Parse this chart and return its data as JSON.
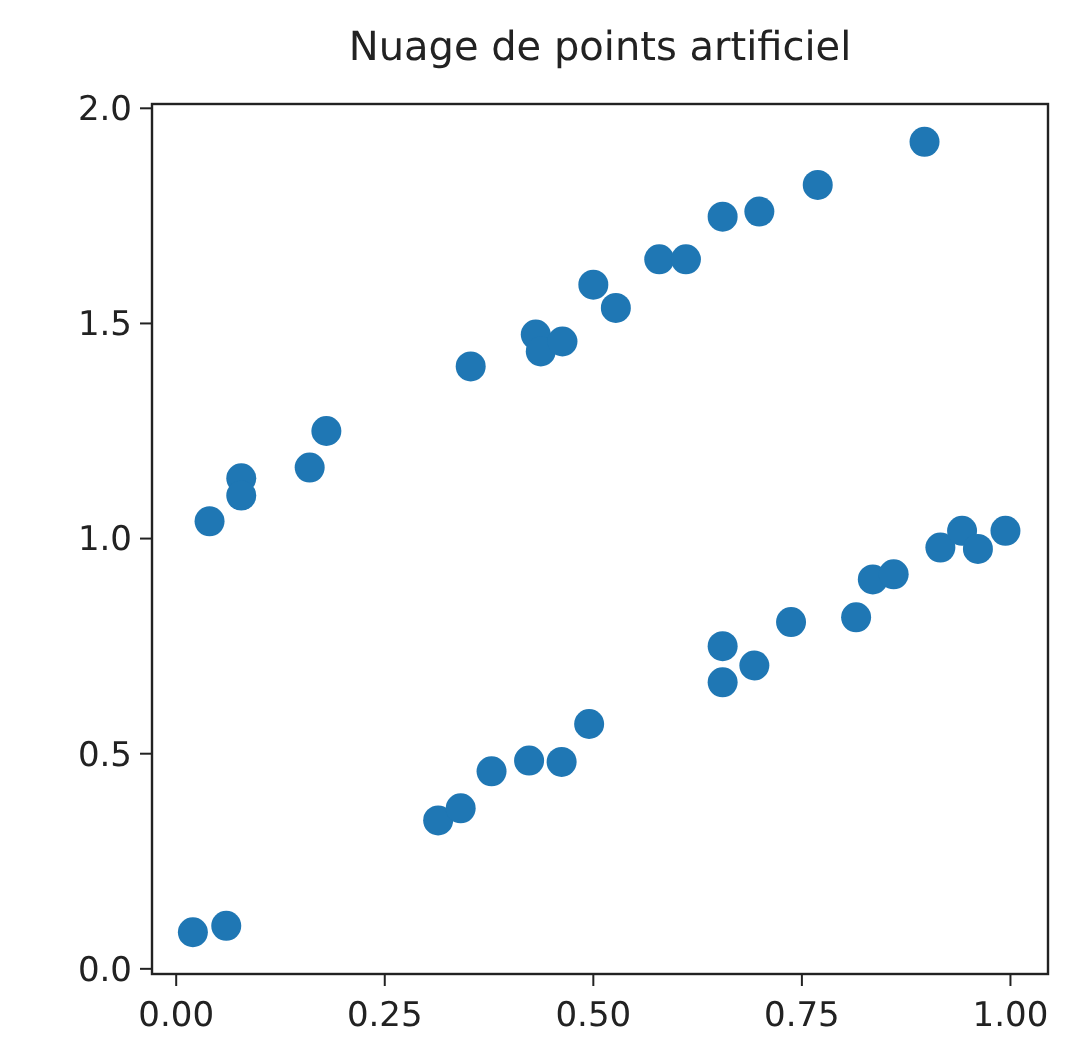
{
  "chart_data": {
    "type": "scatter",
    "title": "Nuage de points artificiel",
    "x": [
      0.04,
      0.078,
      0.078,
      0.16,
      0.18,
      0.353,
      0.431,
      0.437,
      0.463,
      0.5,
      0.527,
      0.579,
      0.611,
      0.655,
      0.699,
      0.769,
      0.897,
      0.02,
      0.06,
      0.314,
      0.341,
      0.378,
      0.423,
      0.462,
      0.495,
      0.655,
      0.655,
      0.693,
      0.737,
      0.815,
      0.835,
      0.86,
      0.916,
      0.942,
      0.961,
      0.994
    ],
    "values": [
      1.04,
      1.14,
      1.1,
      1.165,
      1.25,
      1.4,
      1.474,
      1.435,
      1.458,
      1.59,
      1.536,
      1.649,
      1.649,
      1.748,
      1.76,
      1.822,
      1.922,
      0.085,
      0.1,
      0.345,
      0.373,
      0.459,
      0.484,
      0.481,
      0.569,
      0.75,
      0.666,
      0.705,
      0.806,
      0.817,
      0.905,
      0.917,
      0.979,
      1.018,
      0.976,
      1.018
    ],
    "color": "#1f77b4",
    "marker": "circle",
    "xlim": [
      -0.029,
      1.045
    ],
    "ylim": [
      -0.012,
      2.01
    ],
    "xticks": [
      {
        "value": 0,
        "label": "0.00"
      },
      {
        "value": 0.25,
        "label": "0.25"
      },
      {
        "value": 0.5,
        "label": "0.50"
      },
      {
        "value": 0.75,
        "label": "0.75"
      },
      {
        "value": 1,
        "label": "1.00"
      }
    ],
    "yticks": [
      {
        "value": 0,
        "label": "0.0"
      },
      {
        "value": 0.5,
        "label": "0.5"
      },
      {
        "value": 1,
        "label": "1.0"
      },
      {
        "value": 1.5,
        "label": "1.5"
      },
      {
        "value": 2,
        "label": "2.0"
      }
    ],
    "grid": false
  }
}
